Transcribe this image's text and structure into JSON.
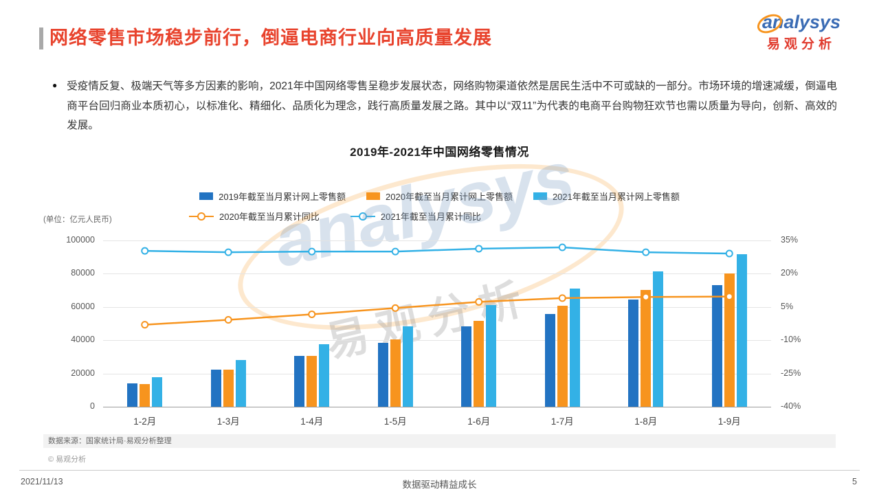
{
  "header": {
    "title": "网络零售市场稳步前行，倒逼电商行业向高质量发展",
    "logo_en": "analysys",
    "logo_cn": "易观分析"
  },
  "intro": {
    "bullet": "●",
    "text": "受疫情反复、极端天气等多方因素的影响，2021年中国网络零售呈稳步发展状态，网络购物渠道依然是居民生活中不可或缺的一部分。市场环境的增速减缓，倒逼电商平台回归商业本质初心，以标准化、精细化、品质化为理念，践行高质量发展之路。其中以“双11”为代表的电商平台购物狂欢节也需以质量为导向，创新、高效的发展。"
  },
  "watermark": {
    "en": "analysys",
    "cn": "易观分析"
  },
  "chart_data": {
    "type": "bar",
    "combo": "grouped-bars-with-lines-dual-axis",
    "title": "2019年-2021年中国网络零售情况",
    "categories": [
      "1-2月",
      "1-3月",
      "1-4月",
      "1-5月",
      "1-6月",
      "1-7月",
      "1-8月",
      "1-9月"
    ],
    "bar_series": [
      {
        "name": "2019年截至当月累计网上零售额",
        "color": "#2273C2",
        "values": [
          13983,
          22379,
          30439,
          38641,
          48161,
          55972,
          64393,
          73237
        ]
      },
      {
        "name": "2020年截至当月累计网上零售额",
        "color": "#F7941E",
        "values": [
          13712,
          22169,
          30698,
          40372,
          51501,
          60785,
          70326,
          80065
        ]
      },
      {
        "name": "2021年截至当月累计网上零售额",
        "color": "#33B1E6",
        "values": [
          17587,
          28093,
          37638,
          48239,
          61133,
          71108,
          81227,
          91871
        ]
      }
    ],
    "line_series": [
      {
        "name": "2020年截至当月累计同比",
        "color": "#F7941E",
        "unit": "%",
        "values": [
          -3.0,
          -0.8,
          1.7,
          4.5,
          7.3,
          9.0,
          9.5,
          9.7
        ]
      },
      {
        "name": "2021年截至当月累计同比",
        "color": "#33B1E6",
        "unit": "%",
        "values": [
          30.3,
          29.7,
          30.0,
          30.0,
          31.3,
          31.9,
          29.7,
          29.1
        ]
      }
    ],
    "left_axis": {
      "unit_label": "(单位：亿元人民币)",
      "min": 0,
      "max": 100000,
      "ticks": [
        0,
        20000,
        40000,
        60000,
        80000,
        100000
      ]
    },
    "right_axis": {
      "min": -40,
      "max": 35,
      "ticks": [
        "-40%",
        "-25%",
        "-10%",
        "5%",
        "20%",
        "35%"
      ]
    },
    "grid": true,
    "legend_position": "top"
  },
  "footer": {
    "source": "数据来源：国家统计局·易观分析整理",
    "copyright": "© 易观分析",
    "date": "2021/11/13",
    "slogan": "数据驱动精益成长",
    "page": "5"
  },
  "colors": {
    "title_red": "#E8432D",
    "logo_blue": "#3B6CB4",
    "logo_orange": "#F7941E",
    "bar_2019": "#2273C2",
    "bar_2020": "#F7941E",
    "bar_2021": "#33B1E6"
  }
}
